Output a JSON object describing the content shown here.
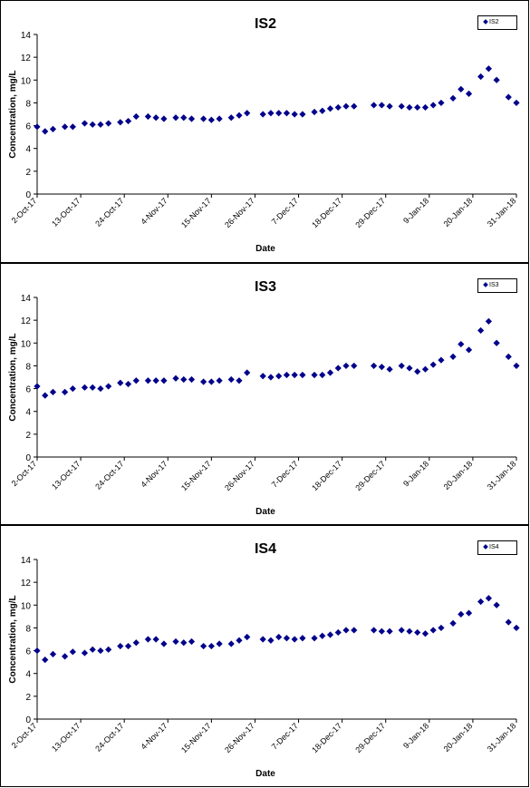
{
  "chart_data": [
    {
      "type": "scatter",
      "title": "IS2",
      "xlabel": "Date",
      "ylabel": "Concentration, mg/L",
      "ylim": [
        0,
        14
      ],
      "yticks": [
        0,
        2,
        4,
        6,
        8,
        10,
        12,
        14
      ],
      "xlim": [
        "2-Oct-17",
        "31-Jan-18"
      ],
      "xticks": [
        "2-Oct-17",
        "13-Oct-17",
        "24-Oct-17",
        "4-Nov-17",
        "15-Nov-17",
        "26-Nov-17",
        "7-Dec-17",
        "18-Dec-17",
        "29-Dec-17",
        "9-Jan-18",
        "20-Jan-18",
        "31-Jan-18"
      ],
      "legend_position": "top-right",
      "marker_color": "#00008b",
      "series": [
        {
          "name": "IS2",
          "x": [
            "2-Oct-17",
            "4-Oct-17",
            "6-Oct-17",
            "9-Oct-17",
            "11-Oct-17",
            "14-Oct-17",
            "16-Oct-17",
            "18-Oct-17",
            "20-Oct-17",
            "23-Oct-17",
            "25-Oct-17",
            "27-Oct-17",
            "30-Oct-17",
            "1-Nov-17",
            "3-Nov-17",
            "6-Nov-17",
            "8-Nov-17",
            "10-Nov-17",
            "13-Nov-17",
            "15-Nov-17",
            "17-Nov-17",
            "20-Nov-17",
            "22-Nov-17",
            "24-Nov-17",
            "28-Nov-17",
            "30-Nov-17",
            "2-Dec-17",
            "4-Dec-17",
            "6-Dec-17",
            "8-Dec-17",
            "11-Dec-17",
            "13-Dec-17",
            "15-Dec-17",
            "17-Dec-17",
            "19-Dec-17",
            "21-Dec-17",
            "26-Dec-17",
            "28-Dec-17",
            "30-Dec-17",
            "2-Jan-18",
            "4-Jan-18",
            "6-Jan-18",
            "8-Jan-18",
            "10-Jan-18",
            "12-Jan-18",
            "15-Jan-18",
            "17-Jan-18",
            "19-Jan-18",
            "22-Jan-18",
            "24-Jan-18",
            "26-Jan-18",
            "29-Jan-18",
            "31-Jan-18"
          ],
          "y": [
            5.9,
            5.5,
            5.7,
            5.9,
            5.9,
            6.2,
            6.1,
            6.1,
            6.2,
            6.3,
            6.4,
            6.8,
            6.8,
            6.7,
            6.6,
            6.7,
            6.7,
            6.6,
            6.6,
            6.5,
            6.6,
            6.7,
            6.9,
            7.1,
            7.0,
            7.1,
            7.1,
            7.1,
            7.0,
            7.0,
            7.2,
            7.3,
            7.5,
            7.6,
            7.7,
            7.7,
            7.8,
            7.8,
            7.7,
            7.7,
            7.6,
            7.6,
            7.6,
            7.8,
            8.0,
            8.4,
            9.2,
            8.8,
            10.3,
            11.0,
            10.0,
            8.5,
            8.0
          ]
        }
      ]
    },
    {
      "type": "scatter",
      "title": "IS3",
      "xlabel": "Date",
      "ylabel": "Concentration, mg/L",
      "ylim": [
        0,
        14
      ],
      "yticks": [
        0,
        2,
        4,
        6,
        8,
        10,
        12,
        14
      ],
      "xlim": [
        "2-Oct-17",
        "31-Jan-18"
      ],
      "xticks": [
        "2-Oct-17",
        "13-Oct-17",
        "24-Oct-17",
        "4-Nov-17",
        "15-Nov-17",
        "26-Nov-17",
        "7-Dec-17",
        "18-Dec-17",
        "29-Dec-17",
        "9-Jan-18",
        "20-Jan-18",
        "31-Jan-18"
      ],
      "legend_position": "top-right",
      "marker_color": "#00008b",
      "series": [
        {
          "name": "IS3",
          "x": [
            "2-Oct-17",
            "4-Oct-17",
            "6-Oct-17",
            "9-Oct-17",
            "11-Oct-17",
            "14-Oct-17",
            "16-Oct-17",
            "18-Oct-17",
            "20-Oct-17",
            "23-Oct-17",
            "25-Oct-17",
            "27-Oct-17",
            "30-Oct-17",
            "1-Nov-17",
            "3-Nov-17",
            "6-Nov-17",
            "8-Nov-17",
            "10-Nov-17",
            "13-Nov-17",
            "15-Nov-17",
            "17-Nov-17",
            "20-Nov-17",
            "22-Nov-17",
            "24-Nov-17",
            "28-Nov-17",
            "30-Nov-17",
            "2-Dec-17",
            "4-Dec-17",
            "6-Dec-17",
            "8-Dec-17",
            "11-Dec-17",
            "13-Dec-17",
            "15-Dec-17",
            "17-Dec-17",
            "19-Dec-17",
            "21-Dec-17",
            "26-Dec-17",
            "28-Dec-17",
            "30-Dec-17",
            "2-Jan-18",
            "4-Jan-18",
            "6-Jan-18",
            "8-Jan-18",
            "10-Jan-18",
            "12-Jan-18",
            "15-Jan-18",
            "17-Jan-18",
            "19-Jan-18",
            "22-Jan-18",
            "24-Jan-18",
            "26-Jan-18",
            "29-Jan-18",
            "31-Jan-18"
          ],
          "y": [
            6.2,
            5.4,
            5.7,
            5.7,
            6.0,
            6.1,
            6.1,
            6.0,
            6.2,
            6.5,
            6.4,
            6.7,
            6.7,
            6.7,
            6.7,
            6.9,
            6.8,
            6.8,
            6.6,
            6.6,
            6.7,
            6.8,
            6.7,
            7.4,
            7.1,
            7.0,
            7.1,
            7.2,
            7.2,
            7.2,
            7.2,
            7.2,
            7.4,
            7.8,
            8.0,
            8.0,
            8.0,
            7.9,
            7.7,
            8.0,
            7.8,
            7.5,
            7.7,
            8.1,
            8.5,
            8.8,
            9.9,
            9.4,
            11.1,
            11.9,
            10.0,
            8.8,
            8.0
          ]
        }
      ]
    },
    {
      "type": "scatter",
      "title": "IS4",
      "xlabel": "Date",
      "ylabel": "Concentration, mg/L",
      "ylim": [
        0,
        14
      ],
      "yticks": [
        0,
        2,
        4,
        6,
        8,
        10,
        12,
        14
      ],
      "xlim": [
        "2-Oct-17",
        "31-Jan-18"
      ],
      "xticks": [
        "2-Oct-17",
        "13-Oct-17",
        "24-Oct-17",
        "4-Nov-17",
        "15-Nov-17",
        "26-Nov-17",
        "7-Dec-17",
        "18-Dec-17",
        "29-Dec-17",
        "9-Jan-18",
        "20-Jan-18",
        "31-Jan-18"
      ],
      "legend_position": "top-right",
      "marker_color": "#00008b",
      "series": [
        {
          "name": "IS4",
          "x": [
            "2-Oct-17",
            "4-Oct-17",
            "6-Oct-17",
            "9-Oct-17",
            "11-Oct-17",
            "14-Oct-17",
            "16-Oct-17",
            "18-Oct-17",
            "20-Oct-17",
            "23-Oct-17",
            "25-Oct-17",
            "27-Oct-17",
            "30-Oct-17",
            "1-Nov-17",
            "3-Nov-17",
            "6-Nov-17",
            "8-Nov-17",
            "10-Nov-17",
            "13-Nov-17",
            "15-Nov-17",
            "17-Nov-17",
            "20-Nov-17",
            "22-Nov-17",
            "24-Nov-17",
            "28-Nov-17",
            "30-Nov-17",
            "2-Dec-17",
            "4-Dec-17",
            "6-Dec-17",
            "8-Dec-17",
            "11-Dec-17",
            "13-Dec-17",
            "15-Dec-17",
            "17-Dec-17",
            "19-Dec-17",
            "21-Dec-17",
            "26-Dec-17",
            "28-Dec-17",
            "30-Dec-17",
            "2-Jan-18",
            "4-Jan-18",
            "6-Jan-18",
            "8-Jan-18",
            "10-Jan-18",
            "12-Jan-18",
            "15-Jan-18",
            "17-Jan-18",
            "19-Jan-18",
            "22-Jan-18",
            "24-Jan-18",
            "26-Jan-18",
            "29-Jan-18",
            "31-Jan-18"
          ],
          "y": [
            6.0,
            5.2,
            5.7,
            5.5,
            5.9,
            5.8,
            6.1,
            6.0,
            6.1,
            6.4,
            6.4,
            6.7,
            7.0,
            7.0,
            6.6,
            6.8,
            6.7,
            6.8,
            6.4,
            6.4,
            6.6,
            6.6,
            6.9,
            7.2,
            7.0,
            6.9,
            7.2,
            7.1,
            7.0,
            7.1,
            7.1,
            7.3,
            7.4,
            7.6,
            7.8,
            7.8,
            7.8,
            7.7,
            7.7,
            7.8,
            7.7,
            7.6,
            7.5,
            7.8,
            8.0,
            8.4,
            9.2,
            9.3,
            10.3,
            10.6,
            10.0,
            8.5,
            8.0
          ]
        }
      ]
    }
  ]
}
